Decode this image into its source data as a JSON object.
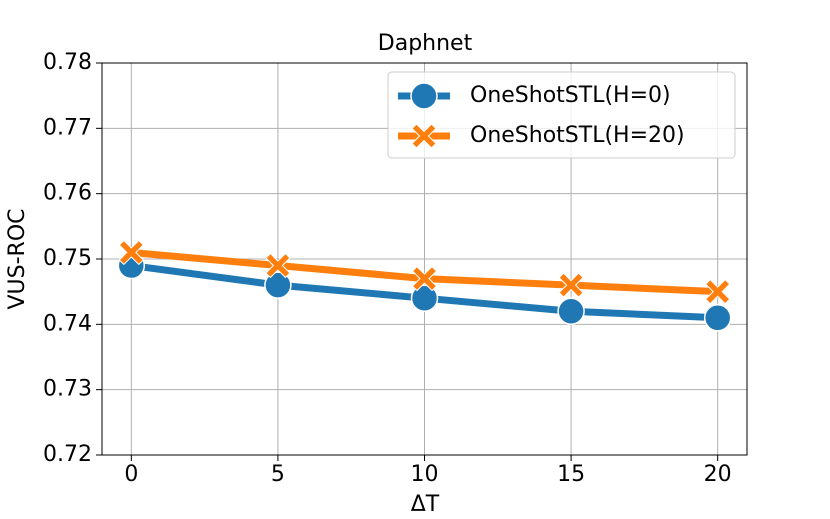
{
  "chart_data": {
    "type": "line",
    "title": "Daphnet",
    "x_label": "ΔT",
    "y_label": "VUS-ROC",
    "x": [
      0,
      5,
      10,
      15,
      20
    ],
    "series": [
      {
        "name": "OneShotSTL(H=0)",
        "color": "#1f77b4",
        "marker": "circle",
        "values": [
          0.749,
          0.746,
          0.744,
          0.742,
          0.741
        ]
      },
      {
        "name": "OneShotSTL(H=20)",
        "color": "#ff7f0e",
        "marker": "x",
        "values": [
          0.751,
          0.749,
          0.747,
          0.746,
          0.745
        ]
      }
    ],
    "xlim": [
      -1,
      21
    ],
    "xticks": [
      0,
      5,
      10,
      15,
      20
    ],
    "ylim": [
      0.72,
      0.78
    ],
    "yticks": [
      0.72,
      0.73,
      0.74,
      0.75,
      0.76,
      0.77,
      0.78
    ],
    "grid": true,
    "legend": "upper right"
  }
}
